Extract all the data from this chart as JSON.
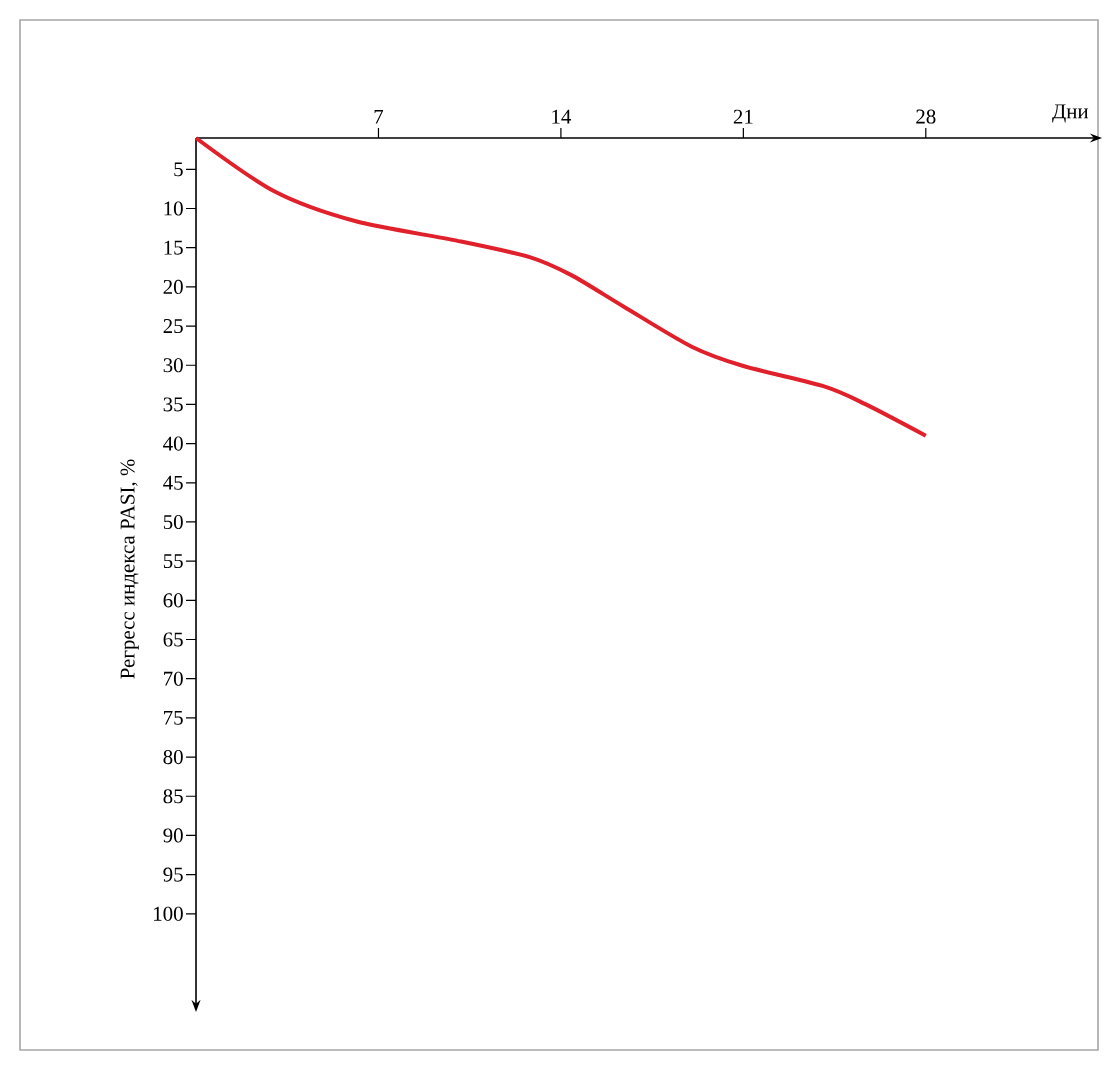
{
  "chart_data": {
    "type": "line",
    "xlabel": "Дни",
    "ylabel": "Регресс индекса PASI, %",
    "x": [
      0,
      3.0,
      6.1,
      10.0,
      12.8,
      14.4,
      16.4,
      19.0,
      21.0,
      24.1,
      25.7,
      28.0
    ],
    "values": [
      1,
      7.8,
      11.6,
      14.1,
      16.2,
      18.5,
      22.5,
      27.6,
      30.1,
      32.7,
      35.0,
      39.0
    ],
    "color": "#e0202a",
    "xlim": [
      0,
      34.3
    ],
    "ylim": [
      111,
      1
    ],
    "xticks": [
      7,
      14,
      21,
      28
    ],
    "yticks": [
      5,
      10,
      15,
      20,
      25,
      30,
      35,
      40,
      45,
      50,
      55,
      60,
      65,
      70,
      75,
      80,
      85,
      90,
      95,
      100
    ]
  }
}
